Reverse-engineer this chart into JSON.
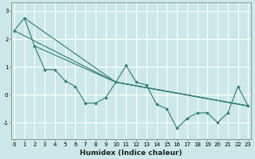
{
  "xlabel": "Humidex (Indice chaleur)",
  "ylabel": "",
  "bg_color": "#cce8e8",
  "grid_color": "#ffffff",
  "line_color": "#2d7d6e",
  "series": [
    {
      "x": [
        0,
        1,
        2,
        3,
        4,
        5,
        6,
        7,
        8,
        9,
        10,
        11,
        12,
        13,
        14,
        15,
        16,
        17,
        18,
        19,
        20,
        21,
        22,
        23
      ],
      "y": [
        2.3,
        2.75,
        1.75,
        0.9,
        0.9,
        0.5,
        0.3,
        -0.3,
        -0.3,
        -0.1,
        0.45,
        1.05,
        0.45,
        0.35,
        -0.35,
        -0.5,
        -1.2,
        -0.85,
        -0.65,
        -0.65,
        -1.0,
        -0.65,
        0.3,
        -0.4
      ]
    },
    {
      "x": [
        0,
        10,
        23
      ],
      "y": [
        2.3,
        0.45,
        -0.4
      ]
    },
    {
      "x": [
        1,
        10,
        23
      ],
      "y": [
        2.75,
        0.45,
        -0.4
      ]
    },
    {
      "x": [
        2,
        10,
        23
      ],
      "y": [
        1.75,
        0.45,
        -0.4
      ]
    }
  ],
  "xlim": [
    -0.3,
    23.3
  ],
  "ylim": [
    -1.6,
    3.3
  ],
  "yticks": [
    -1,
    0,
    1,
    2,
    3
  ],
  "xticks": [
    0,
    1,
    2,
    3,
    4,
    5,
    6,
    7,
    8,
    9,
    10,
    11,
    12,
    13,
    14,
    15,
    16,
    17,
    18,
    19,
    20,
    21,
    22,
    23
  ],
  "xtick_labels": [
    "0",
    "1",
    "2",
    "3",
    "4",
    "5",
    "6",
    "7",
    "8",
    "9",
    "10",
    "11",
    "12",
    "13",
    "14",
    "15",
    "16",
    "17",
    "18",
    "19",
    "20",
    "21",
    "22",
    "23"
  ],
  "title_fontsize": 6.5,
  "label_fontsize": 6.5,
  "tick_fontsize": 5.0
}
